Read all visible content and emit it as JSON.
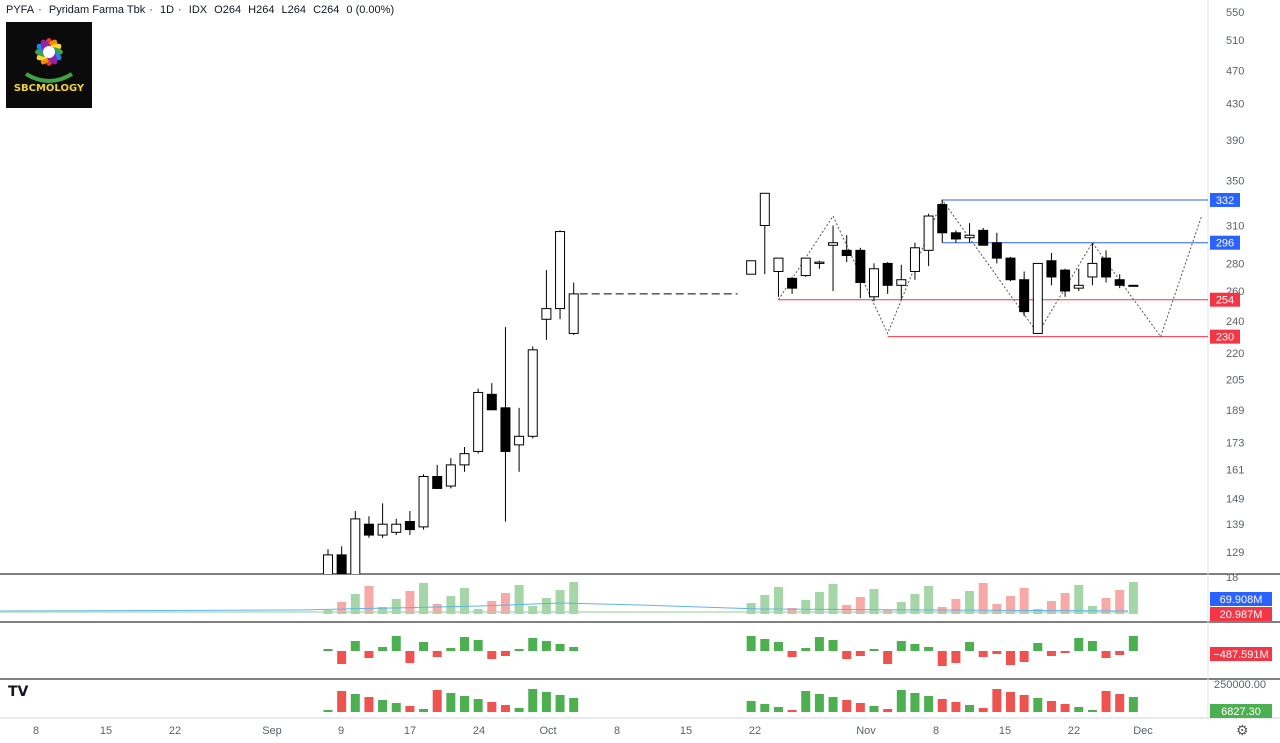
{
  "header": {
    "symbol": "PYFA",
    "name": "Pyridam Farma Tbk",
    "interval": "1D",
    "exchange": "IDX",
    "open": "O264",
    "high": "H264",
    "low": "L264",
    "close": "C264",
    "change": "0 (0.00%)"
  },
  "logo": {
    "text": "SBCMOLOGY"
  },
  "tv_logo": "TV",
  "settings_icon": "gear-icon",
  "colors": {
    "up_body": "#ffffff",
    "down_body": "#000000",
    "wick": "#000000",
    "blue_level": "#2962ff",
    "red_level": "#f23645",
    "vol_up": "#a5d6a7",
    "vol_down": "#f7a9a7",
    "osc_up": "#4caf50",
    "osc_down": "#ef5350",
    "ma_line": "#5fb4e6"
  },
  "chart_data": {
    "type": "candlestick",
    "y_scale": "log",
    "price_axis": [
      "550",
      "510",
      "470",
      "430",
      "390",
      "350",
      "310",
      "280",
      "260",
      "240",
      "220",
      "205",
      "189",
      "173",
      "161",
      "149",
      "139",
      "129",
      "18"
    ],
    "x_axis": [
      "8",
      "15",
      "22",
      "Sep",
      "9",
      "17",
      "24",
      "Oct",
      "8",
      "15",
      "22",
      "Nov",
      "8",
      "15",
      "22",
      "Dec"
    ],
    "candles": [
      {
        "date": "Sep 6",
        "o": 116,
        "h": 130,
        "l": 112,
        "c": 128
      },
      {
        "date": "Sep 9",
        "o": 128,
        "h": 131,
        "l": 112,
        "c": 114
      },
      {
        "date": "Sep 10",
        "o": 118,
        "h": 144,
        "l": 116,
        "c": 141
      },
      {
        "date": "Sep 11",
        "o": 139,
        "h": 142,
        "l": 134,
        "c": 135
      },
      {
        "date": "Sep 12",
        "o": 135,
        "h": 147,
        "l": 134,
        "c": 139
      },
      {
        "date": "Sep 13",
        "o": 136,
        "h": 141,
        "l": 135,
        "c": 139
      },
      {
        "date": "Sep 16",
        "o": 140,
        "h": 144,
        "l": 135,
        "c": 137
      },
      {
        "date": "Sep 17",
        "o": 138,
        "h": 159,
        "l": 137,
        "c": 158
      },
      {
        "date": "Sep 18",
        "o": 158,
        "h": 163,
        "l": 154,
        "c": 153
      },
      {
        "date": "Sep 19",
        "o": 154,
        "h": 166,
        "l": 153,
        "c": 163
      },
      {
        "date": "Sep 20",
        "o": 163,
        "h": 171,
        "l": 160,
        "c": 168
      },
      {
        "date": "Sep 23",
        "o": 169,
        "h": 200,
        "l": 168,
        "c": 198
      },
      {
        "date": "Sep 24",
        "o": 197,
        "h": 203,
        "l": 190,
        "c": 189
      },
      {
        "date": "Sep 25",
        "o": 190,
        "h": 236,
        "l": 140,
        "c": 169
      },
      {
        "date": "Sep 26",
        "o": 172,
        "h": 190,
        "l": 160,
        "c": 176
      },
      {
        "date": "Sep 27",
        "o": 176,
        "h": 224,
        "l": 175,
        "c": 222
      },
      {
        "date": "Sep 30",
        "o": 241,
        "h": 275,
        "l": 228,
        "c": 248
      },
      {
        "date": "Oct 1",
        "o": 248,
        "h": 306,
        "l": 241,
        "c": 305
      },
      {
        "date": "Oct 2",
        "o": 232,
        "h": 266,
        "l": 231,
        "c": 258
      },
      {
        "date": "Oct 21",
        "o": 272,
        "h": 282,
        "l": 272,
        "c": 282
      },
      {
        "date": "Oct 22",
        "o": 310,
        "h": 338,
        "l": 272,
        "c": 338
      },
      {
        "date": "Oct 23",
        "o": 274,
        "h": 284,
        "l": 256,
        "c": 284
      },
      {
        "date": "Oct 24",
        "o": 269,
        "h": 270,
        "l": 258,
        "c": 262
      },
      {
        "date": "Oct 25",
        "o": 271,
        "h": 284,
        "l": 270,
        "c": 284
      },
      {
        "date": "Oct 28",
        "o": 280,
        "h": 282,
        "l": 276,
        "c": 281
      },
      {
        "date": "Oct 29",
        "o": 294,
        "h": 310,
        "l": 260,
        "c": 296
      },
      {
        "date": "Oct 30",
        "o": 290,
        "h": 302,
        "l": 281,
        "c": 286
      },
      {
        "date": "Oct 31",
        "o": 290,
        "h": 292,
        "l": 255,
        "c": 266
      },
      {
        "date": "Nov 1",
        "o": 256,
        "h": 280,
        "l": 253,
        "c": 276
      },
      {
        "date": "Nov 4",
        "o": 280,
        "h": 281,
        "l": 258,
        "c": 264
      },
      {
        "date": "Nov 5",
        "o": 264,
        "h": 279,
        "l": 254,
        "c": 268
      },
      {
        "date": "Nov 6",
        "o": 274,
        "h": 296,
        "l": 268,
        "c": 292
      },
      {
        "date": "Nov 7",
        "o": 290,
        "h": 320,
        "l": 278,
        "c": 318
      },
      {
        "date": "Nov 8",
        "o": 328,
        "h": 332,
        "l": 296,
        "c": 304
      },
      {
        "date": "Nov 11",
        "o": 304,
        "h": 306,
        "l": 296,
        "c": 299
      },
      {
        "date": "Nov 12",
        "o": 300,
        "h": 312,
        "l": 296,
        "c": 302
      },
      {
        "date": "Nov 13",
        "o": 306,
        "h": 308,
        "l": 294,
        "c": 294
      },
      {
        "date": "Nov 14",
        "o": 296,
        "h": 304,
        "l": 280,
        "c": 284
      },
      {
        "date": "Nov 15",
        "o": 284,
        "h": 285,
        "l": 267,
        "c": 268
      },
      {
        "date": "Nov 18",
        "o": 268,
        "h": 274,
        "l": 243,
        "c": 246
      },
      {
        "date": "Nov 19",
        "o": 232,
        "h": 280,
        "l": 232,
        "c": 280
      },
      {
        "date": "Nov 20",
        "o": 282,
        "h": 288,
        "l": 264,
        "c": 270
      },
      {
        "date": "Nov 21",
        "o": 275,
        "h": 276,
        "l": 256,
        "c": 260
      },
      {
        "date": "Nov 22",
        "o": 262,
        "h": 276,
        "l": 260,
        "c": 264
      },
      {
        "date": "Nov 25",
        "o": 270,
        "h": 296,
        "l": 264,
        "c": 280
      },
      {
        "date": "Nov 26",
        "o": 284,
        "h": 290,
        "l": 266,
        "c": 270
      },
      {
        "date": "Nov 27",
        "o": 268,
        "h": 272,
        "l": 262,
        "c": 264
      },
      {
        "date": "Nov 28",
        "o": 264,
        "h": 264,
        "l": 264,
        "c": 264
      }
    ],
    "gap_line": {
      "from": "Oct 2",
      "to": "Oct 18",
      "value": 258
    },
    "levels": [
      {
        "value": 332,
        "label": "332",
        "color": "#2962ff",
        "from": "Nov 8"
      },
      {
        "value": 296,
        "label": "296",
        "color": "#2962ff",
        "from": "Nov 8"
      },
      {
        "value": 254,
        "label": "254",
        "color": "#f23645",
        "from": "Oct 23"
      },
      {
        "value": 230,
        "label": "230",
        "color": "#f23645",
        "from": "Nov 4"
      }
    ],
    "zigzag": [
      {
        "date": "Oct 23",
        "v": 254
      },
      {
        "date": "Oct 29",
        "v": 318
      },
      {
        "date": "Nov 4",
        "v": 232
      },
      {
        "date": "Nov 8",
        "v": 332
      },
      {
        "date": "Nov 19",
        "v": 232
      },
      {
        "date": "Nov 25",
        "v": 296
      },
      {
        "date": "Dec 2",
        "v": 230
      },
      {
        "date": "Dec 5",
        "v": 318
      }
    ],
    "volume_label": "69.908M",
    "volume_ma_label": "20.987M",
    "osc1_label": "−487.591M",
    "osc2_axis": "250000.00",
    "osc2_label": "6827.30"
  }
}
